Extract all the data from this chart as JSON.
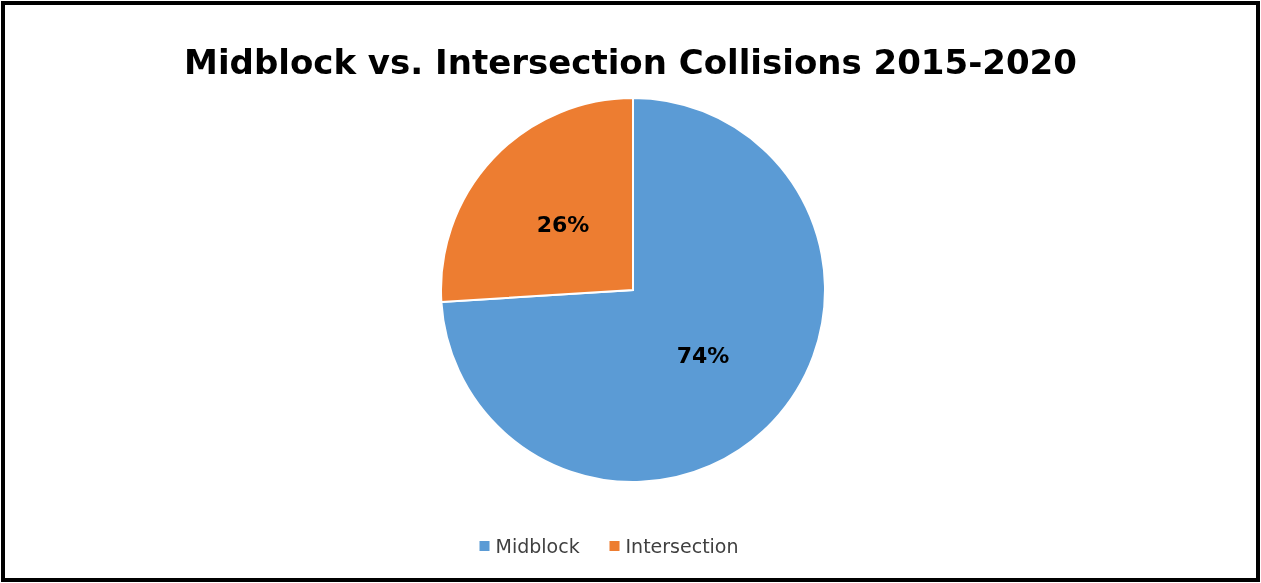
{
  "chart_data": {
    "type": "pie",
    "title": "Midblock vs. Intersection Collisions 2015-2020",
    "categories": [
      "Midblock",
      "Intersection"
    ],
    "values": [
      74,
      26
    ],
    "colors": [
      "#5b9bd5",
      "#ed7d31"
    ],
    "value_labels": [
      "74%",
      "26%"
    ],
    "legend": "bottom"
  }
}
